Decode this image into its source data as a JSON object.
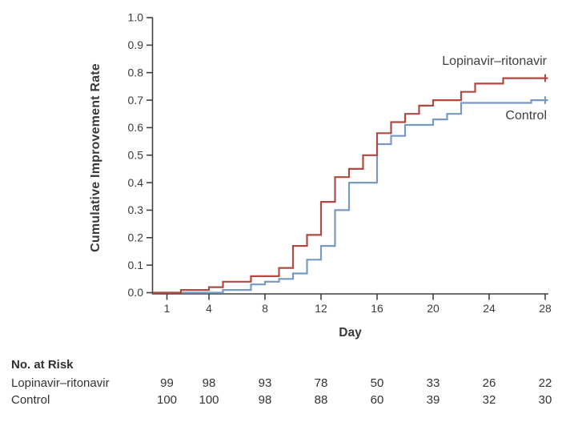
{
  "figure": {
    "background": "#ffffff",
    "y_axis_title": "Cumulative Improvement Rate",
    "x_axis_title": "Day"
  },
  "chart_data": {
    "type": "line",
    "subtype": "step",
    "title": "",
    "xlabel": "Day",
    "ylabel": "Cumulative Improvement Rate",
    "xlim": [
      0,
      28.3
    ],
    "ylim": [
      0.0,
      1.0
    ],
    "x_ticks": [
      1,
      4,
      8,
      12,
      16,
      20,
      24,
      28
    ],
    "y_ticks": [
      "0.0",
      "0.1",
      "0.2",
      "0.3",
      "0.4",
      "0.5",
      "0.6",
      "0.7",
      "0.8",
      "0.9",
      "1.0"
    ],
    "grid": false,
    "legend_position": "labels-inline",
    "axis_color": "#414141",
    "text_color": "#3b3b3b",
    "censor_marker": "+",
    "series": [
      {
        "name": "Lopinavir–ritonavir",
        "color": "#b04a40",
        "censor_day": 28,
        "final_rate": 0.78,
        "points": [
          [
            1,
            0.0
          ],
          [
            2,
            0.01
          ],
          [
            4,
            0.02
          ],
          [
            5,
            0.04
          ],
          [
            7,
            0.06
          ],
          [
            9,
            0.09
          ],
          [
            10,
            0.17
          ],
          [
            11,
            0.21
          ],
          [
            12,
            0.33
          ],
          [
            13,
            0.42
          ],
          [
            14,
            0.45
          ],
          [
            15,
            0.5
          ],
          [
            16,
            0.58
          ],
          [
            17,
            0.62
          ],
          [
            18,
            0.65
          ],
          [
            19,
            0.68
          ],
          [
            20,
            0.7
          ],
          [
            22,
            0.73
          ],
          [
            23,
            0.76
          ],
          [
            25,
            0.78
          ],
          [
            28,
            0.78
          ]
        ]
      },
      {
        "name": "Control",
        "color": "#7899c2",
        "censor_day": 28,
        "final_rate": 0.7,
        "points": [
          [
            1,
            0.0
          ],
          [
            5,
            0.01
          ],
          [
            7,
            0.03
          ],
          [
            8,
            0.04
          ],
          [
            9,
            0.05
          ],
          [
            10,
            0.07
          ],
          [
            11,
            0.12
          ],
          [
            12,
            0.17
          ],
          [
            13,
            0.3
          ],
          [
            14,
            0.4
          ],
          [
            16,
            0.54
          ],
          [
            17,
            0.57
          ],
          [
            18,
            0.61
          ],
          [
            20,
            0.63
          ],
          [
            21,
            0.65
          ],
          [
            22,
            0.69
          ],
          [
            27,
            0.7
          ],
          [
            28,
            0.7
          ]
        ]
      }
    ]
  },
  "risk": {
    "title": "No. at Risk",
    "days": [
      1,
      4,
      8,
      12,
      16,
      20,
      24,
      28
    ],
    "rows": [
      {
        "label": "Lopinavir–ritonavir",
        "values": [
          "99",
          "98",
          "93",
          "78",
          "50",
          "33",
          "26",
          "22"
        ]
      },
      {
        "label": "Control",
        "values": [
          "100",
          "100",
          "98",
          "88",
          "60",
          "39",
          "32",
          "30"
        ]
      }
    ]
  }
}
